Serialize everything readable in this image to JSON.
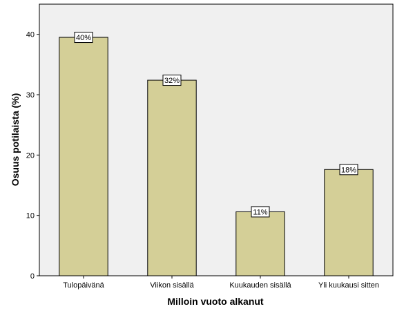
{
  "chart_data": {
    "type": "bar",
    "categories": [
      "Tulopäivänä",
      "Viikon sisällä",
      "Kuukauden sisällä",
      "Yli kuukausi sitten"
    ],
    "values": [
      39.5,
      32.4,
      10.6,
      17.6
    ],
    "data_labels": [
      "40%",
      "32%",
      "11%",
      "18%"
    ],
    "xlabel": "Milloin vuoto alkanut",
    "ylabel": "Osuus potilaista (%)",
    "ylim": [
      0,
      45
    ],
    "yticks": [
      0,
      10,
      20,
      30,
      40
    ],
    "grid": false,
    "colors": {
      "bar_fill": "#d4cf97",
      "bar_stroke": "#000000",
      "plot_background": "#f0f0f0",
      "label_box": "#ffffff"
    }
  }
}
